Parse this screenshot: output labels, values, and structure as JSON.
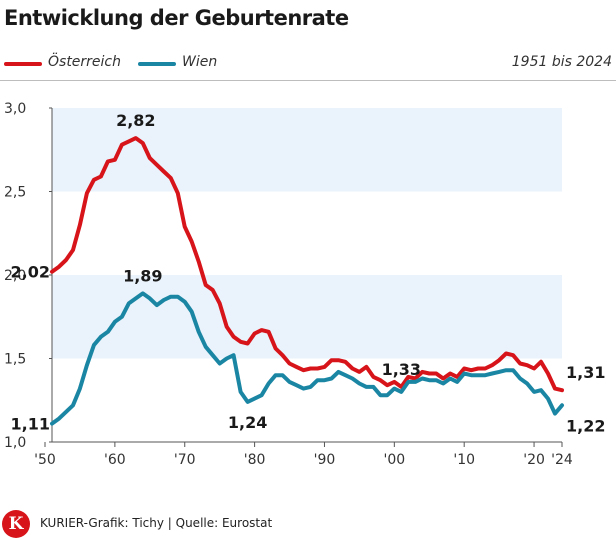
{
  "header": {
    "title": "Entwicklung der Geburtenrate"
  },
  "legend": {
    "items": [
      {
        "label": "Österreich",
        "color": "#d7141a"
      },
      {
        "label": "Wien",
        "color": "#1b86a4"
      }
    ],
    "range": "1951 bis 2024"
  },
  "footer": {
    "source": "KURIER-Grafik: Tichy | Quelle: Eurostat",
    "logo_letter": "K"
  },
  "chart_data": {
    "type": "line",
    "xlim": [
      1951,
      2024
    ],
    "ylim": [
      1.0,
      3.0
    ],
    "x_ticks": [
      {
        "value": 1950,
        "label": "'50"
      },
      {
        "value": 1960,
        "label": "'60"
      },
      {
        "value": 1970,
        "label": "'70"
      },
      {
        "value": 1980,
        "label": "'80"
      },
      {
        "value": 1990,
        "label": "'90"
      },
      {
        "value": 2000,
        "label": "'00"
      },
      {
        "value": 2010,
        "label": "'10"
      },
      {
        "value": 2020,
        "label": "'20"
      },
      {
        "value": 2024,
        "label": "'24"
      }
    ],
    "y_ticks": [
      {
        "value": 1.0,
        "label": "1,0"
      },
      {
        "value": 1.5,
        "label": "1,5"
      },
      {
        "value": 2.0,
        "label": "2,0"
      },
      {
        "value": 2.5,
        "label": "2,5"
      },
      {
        "value": 3.0,
        "label": "3,0"
      }
    ],
    "bands": [
      [
        1.5,
        2.0
      ],
      [
        2.5,
        3.0
      ]
    ],
    "colors": {
      "band": "#eaf3fb",
      "axis": "#555555"
    },
    "x": [
      1951,
      1952,
      1953,
      1954,
      1955,
      1956,
      1957,
      1958,
      1959,
      1960,
      1961,
      1962,
      1963,
      1964,
      1965,
      1966,
      1967,
      1968,
      1969,
      1970,
      1971,
      1972,
      1973,
      1974,
      1975,
      1976,
      1977,
      1978,
      1979,
      1980,
      1981,
      1982,
      1983,
      1984,
      1985,
      1986,
      1987,
      1988,
      1989,
      1990,
      1991,
      1992,
      1993,
      1994,
      1995,
      1996,
      1997,
      1998,
      1999,
      2000,
      2001,
      2002,
      2003,
      2004,
      2005,
      2006,
      2007,
      2008,
      2009,
      2010,
      2011,
      2012,
      2013,
      2014,
      2015,
      2016,
      2017,
      2018,
      2019,
      2020,
      2021,
      2022,
      2023,
      2024
    ],
    "series": [
      {
        "name": "Österreich",
        "color": "#d7141a",
        "values": [
          2.02,
          2.05,
          2.09,
          2.15,
          2.3,
          2.49,
          2.57,
          2.59,
          2.68,
          2.69,
          2.78,
          2.8,
          2.82,
          2.79,
          2.7,
          2.66,
          2.62,
          2.58,
          2.49,
          2.29,
          2.2,
          2.08,
          1.94,
          1.91,
          1.83,
          1.69,
          1.63,
          1.6,
          1.59,
          1.65,
          1.67,
          1.66,
          1.56,
          1.52,
          1.47,
          1.45,
          1.43,
          1.44,
          1.44,
          1.45,
          1.49,
          1.49,
          1.48,
          1.44,
          1.42,
          1.45,
          1.39,
          1.37,
          1.34,
          1.36,
          1.33,
          1.39,
          1.38,
          1.42,
          1.41,
          1.41,
          1.38,
          1.41,
          1.39,
          1.44,
          1.43,
          1.44,
          1.44,
          1.46,
          1.49,
          1.53,
          1.52,
          1.47,
          1.46,
          1.44,
          1.48,
          1.41,
          1.32,
          1.31
        ]
      },
      {
        "name": "Wien",
        "color": "#1b86a4",
        "values": [
          1.11,
          1.14,
          1.18,
          1.22,
          1.32,
          1.46,
          1.58,
          1.63,
          1.66,
          1.72,
          1.75,
          1.83,
          1.86,
          1.89,
          1.86,
          1.82,
          1.85,
          1.87,
          1.87,
          1.84,
          1.78,
          1.66,
          1.57,
          1.52,
          1.47,
          1.5,
          1.52,
          1.3,
          1.24,
          1.26,
          1.28,
          1.35,
          1.4,
          1.4,
          1.36,
          1.34,
          1.32,
          1.33,
          1.37,
          1.37,
          1.38,
          1.42,
          1.4,
          1.38,
          1.35,
          1.33,
          1.33,
          1.28,
          1.28,
          1.32,
          1.3,
          1.36,
          1.36,
          1.38,
          1.37,
          1.37,
          1.35,
          1.38,
          1.36,
          1.41,
          1.4,
          1.4,
          1.4,
          1.41,
          1.42,
          1.43,
          1.43,
          1.38,
          1.35,
          1.3,
          1.31,
          1.26,
          1.17,
          1.22
        ]
      }
    ],
    "annotations": [
      {
        "text": "2,02",
        "x": 1951,
        "y": 2.02,
        "pos": "left"
      },
      {
        "text": "2,82",
        "x": 1963,
        "y": 2.82,
        "pos": "above"
      },
      {
        "text": "1,89",
        "x": 1964,
        "y": 1.89,
        "pos": "above"
      },
      {
        "text": "1,11",
        "x": 1951,
        "y": 1.11,
        "pos": "left"
      },
      {
        "text": "1,24",
        "x": 1979,
        "y": 1.24,
        "pos": "below"
      },
      {
        "text": "1,33",
        "x": 2001,
        "y": 1.33,
        "pos": "above"
      },
      {
        "text": "1,31",
        "x": 2024,
        "y": 1.31,
        "pos": "right-up"
      },
      {
        "text": "1,22",
        "x": 2024,
        "y": 1.22,
        "pos": "right-down"
      }
    ]
  }
}
